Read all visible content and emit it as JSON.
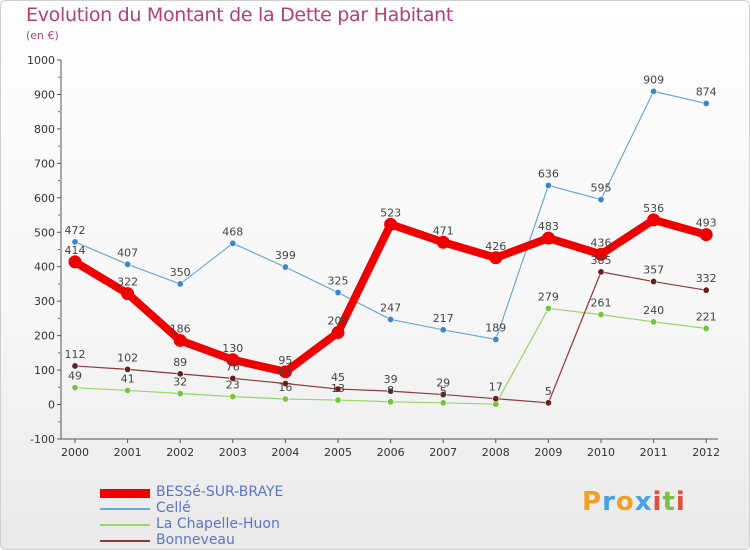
{
  "title": "Evolution du Montant de la Dette par Habitant",
  "subtitle": "(en €)",
  "brand": {
    "text": "Proxiti",
    "letters": [
      {
        "ch": "P",
        "color": "#f0a028"
      },
      {
        "ch": "r",
        "color": "#4aa0e0"
      },
      {
        "ch": "o",
        "color": "#f0a028"
      },
      {
        "ch": "x",
        "color": "#4aa0e0"
      },
      {
        "ch": "i",
        "color": "#e0503c"
      },
      {
        "ch": "t",
        "color": "#7cc048"
      },
      {
        "ch": "i",
        "color": "#e0503c"
      }
    ]
  },
  "chart_data": {
    "type": "line",
    "title": "Evolution du Montant de la Dette par Habitant",
    "ylabel": "(en €)",
    "xlabel": "",
    "x": [
      "2000",
      "2001",
      "2002",
      "2003",
      "2004",
      "2005",
      "2006",
      "2007",
      "2008",
      "2009",
      "2010",
      "2011",
      "2012"
    ],
    "ylim": [
      -100,
      1000
    ],
    "yticks": [
      -100,
      0,
      100,
      200,
      300,
      400,
      500,
      600,
      700,
      800,
      900,
      1000
    ],
    "grid": false,
    "legend_position": "bottom-left",
    "series": [
      {
        "name": "BESSé-SUR-BRAYE",
        "color": "#ee0000",
        "point_color": "#ee0000",
        "width": "thick",
        "values": [
          414,
          322,
          186,
          130,
          95,
          209,
          523,
          471,
          426,
          483,
          436,
          536,
          493
        ],
        "labels": [
          "414",
          "322",
          "186",
          "130",
          "95",
          "209",
          "523",
          "471",
          "426",
          "483",
          "436",
          "536",
          "493"
        ]
      },
      {
        "name": "Cellé",
        "color": "#6aa8d8",
        "point_color": "#3d87c8",
        "width": "thin",
        "values": [
          472,
          407,
          350,
          468,
          399,
          325,
          247,
          217,
          189,
          636,
          595,
          909,
          874
        ],
        "labels": [
          "472",
          "407",
          "350",
          "468",
          "399",
          "325",
          "247",
          "217",
          "189",
          "636",
          "595",
          "909",
          "874"
        ]
      },
      {
        "name": "La Chapelle-Huon",
        "color": "#9ad468",
        "point_color": "#78c240",
        "width": "thin",
        "values": [
          49,
          41,
          32,
          23,
          16,
          13,
          8,
          5,
          1,
          279,
          261,
          240,
          221
        ],
        "labels": [
          "49",
          "41",
          "32",
          "23",
          "16",
          "13",
          "8",
          "5",
          "",
          "279",
          "261",
          "240",
          "221"
        ]
      },
      {
        "name": "Bonneveau",
        "color": "#8a3a3a",
        "point_color": "#6a1e1e",
        "width": "thin",
        "values": [
          112,
          102,
          89,
          76,
          61,
          45,
          39,
          29,
          17,
          5,
          385,
          357,
          332
        ],
        "labels": [
          "112",
          "102",
          "89",
          "76",
          "61",
          "45",
          "39",
          "29",
          "17",
          "5",
          "385",
          "357",
          "332"
        ]
      }
    ]
  }
}
